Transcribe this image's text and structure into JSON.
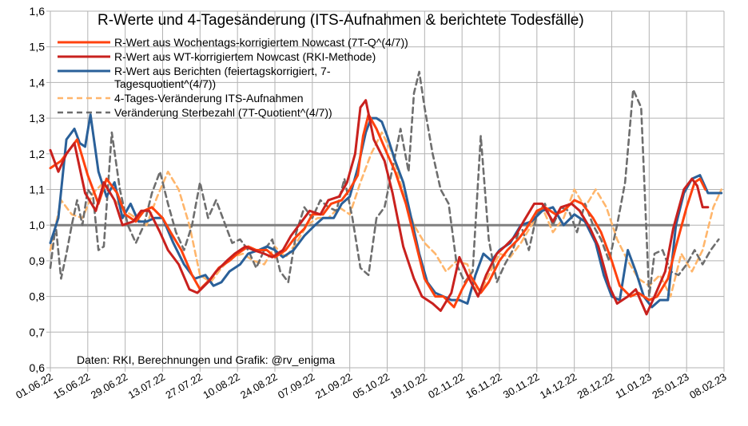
{
  "chart_data": {
    "type": "line",
    "title": "R-Werte und 4-Tagesänderung (ITS-Aufnahmen & berichtete Todesfälle)",
    "credit": "Daten: RKI, Berechnungen und Grafik: @rv_enigma",
    "xlabel": "",
    "ylabel": "",
    "ylim": [
      0.6,
      1.6
    ],
    "y_ticks": [
      "0,6",
      "0,7",
      "0,8",
      "0,9",
      "1,0",
      "1,1",
      "1,2",
      "1,3",
      "1,4",
      "1,5",
      "1,6"
    ],
    "x_ticks": [
      "01.06.22",
      "15.06.22",
      "29.06.22",
      "13.07.22",
      "27.07.22",
      "10.08.22",
      "24.08.22",
      "07.09.22",
      "21.09.22",
      "05.10.22",
      "19.10.22",
      "02.11.22",
      "16.11.22",
      "30.11.22",
      "14.12.22",
      "28.12.22",
      "11.01.23",
      "25.01.23",
      "08.02.23"
    ],
    "x_tick_day": [
      0,
      14,
      28,
      42,
      56,
      70,
      84,
      98,
      112,
      126,
      140,
      154,
      168,
      182,
      196,
      210,
      224,
      238,
      252
    ],
    "x_range_days": [
      0,
      252
    ],
    "grid": true,
    "legend_position": "top-left",
    "reference_line": {
      "value": 1.0,
      "color": "#808080"
    },
    "series": [
      {
        "name": "R-Wert aus Wochentags-korrigiertem Nowcast (7T-Q^(4/7))",
        "legend_lines": [
          "R-Wert aus Wochentags-korrigiertem Nowcast (7T-Q^(4/7))"
        ],
        "color": "#ff420e",
        "dash": "solid",
        "days": [
          0,
          4,
          8,
          10,
          14,
          18,
          21,
          25,
          28,
          32,
          35,
          38,
          42,
          45,
          49,
          53,
          56,
          60,
          63,
          67,
          70,
          74,
          77,
          81,
          84,
          88,
          91,
          95,
          98,
          102,
          105,
          109,
          112,
          115,
          117,
          119,
          122,
          126,
          129,
          133,
          137,
          140,
          144,
          147,
          151,
          154,
          157,
          161,
          164,
          168,
          171,
          175,
          178,
          182,
          185,
          189,
          192,
          196,
          199,
          203,
          206,
          210,
          213,
          217,
          220,
          224,
          227,
          231,
          234,
          238,
          241,
          243,
          245
        ],
        "values": [
          1.16,
          1.18,
          1.22,
          1.24,
          1.14,
          1.06,
          1.13,
          1.09,
          1.03,
          1.01,
          1.04,
          1.05,
          1.02,
          0.98,
          0.93,
          0.86,
          0.82,
          0.85,
          0.88,
          0.9,
          0.92,
          0.94,
          0.93,
          0.93,
          0.91,
          0.93,
          0.96,
          0.99,
          1.03,
          1.03,
          1.06,
          1.07,
          1.1,
          1.14,
          1.25,
          1.31,
          1.27,
          1.2,
          1.15,
          1.06,
          0.94,
          0.85,
          0.8,
          0.8,
          0.77,
          0.82,
          0.86,
          0.81,
          0.84,
          0.9,
          0.93,
          0.96,
          0.99,
          1.04,
          1.05,
          1.03,
          1.04,
          1.07,
          1.06,
          1.02,
          0.98,
          0.9,
          0.83,
          0.8,
          0.81,
          0.79,
          0.8,
          0.85,
          0.94,
          1.05,
          1.12,
          1.13,
          1.1
        ]
      },
      {
        "name": "R-Wert aus WT-korrigiertem Nowcast (RKI-Methode)",
        "legend_lines": [
          "R-Wert aus WT-korrigiertem Nowcast (RKI-Methode)"
        ],
        "color": "#c9211e",
        "dash": "solid",
        "days": [
          0,
          3,
          6,
          9,
          13,
          17,
          20,
          24,
          27,
          31,
          34,
          37,
          41,
          44,
          48,
          52,
          55,
          59,
          62,
          66,
          69,
          73,
          76,
          80,
          83,
          87,
          90,
          94,
          97,
          101,
          104,
          108,
          111,
          114,
          116,
          118,
          121,
          125,
          128,
          132,
          136,
          139,
          143,
          146,
          150,
          153,
          156,
          160,
          163,
          167,
          170,
          174,
          177,
          181,
          184,
          188,
          191,
          195,
          198,
          202,
          205,
          209,
          212,
          216,
          219,
          223,
          226,
          230,
          233,
          237,
          240,
          242,
          244,
          246
        ],
        "values": [
          1.21,
          1.15,
          1.2,
          1.23,
          1.09,
          1.04,
          1.12,
          1.07,
          1.0,
          1.01,
          1.04,
          1.04,
          0.98,
          0.93,
          0.89,
          0.82,
          0.81,
          0.84,
          0.87,
          0.9,
          0.92,
          0.94,
          0.93,
          0.92,
          0.91,
          0.93,
          0.97,
          1.01,
          1.04,
          1.03,
          1.07,
          1.08,
          1.12,
          1.2,
          1.33,
          1.35,
          1.24,
          1.18,
          1.09,
          0.94,
          0.85,
          0.8,
          0.78,
          0.76,
          0.81,
          0.91,
          0.86,
          0.8,
          0.86,
          0.92,
          0.94,
          0.97,
          1.01,
          1.06,
          1.06,
          1.01,
          1.05,
          1.06,
          1.04,
          0.99,
          0.94,
          0.83,
          0.78,
          0.8,
          0.82,
          0.75,
          0.8,
          0.87,
          0.99,
          1.1,
          1.13,
          1.11,
          1.05,
          1.05
        ]
      },
      {
        "name": "R-Wert aus Berichten (feiertagskorrigiert, 7-Tagesquotient^(4/7))",
        "legend_lines": [
          "R-Wert aus Berichten (feiertagskorrigiert, 7-",
          "Tagesquotient^(4/7))"
        ],
        "color": "#2a6099",
        "dash": "solid",
        "days": [
          0,
          3,
          6,
          9,
          11,
          13,
          15,
          18,
          21,
          24,
          27,
          30,
          33,
          36,
          39,
          42,
          46,
          50,
          54,
          58,
          61,
          64,
          67,
          71,
          74,
          78,
          81,
          84,
          87,
          91,
          95,
          99,
          102,
          106,
          109,
          112,
          115,
          118,
          120,
          122,
          124,
          126,
          129,
          132,
          135,
          138,
          141,
          144,
          147,
          150,
          153,
          156,
          159,
          162,
          165,
          168,
          172,
          176,
          180,
          184,
          188,
          192,
          196,
          200,
          204,
          207,
          210,
          213,
          216,
          219,
          222,
          225,
          228,
          231,
          234,
          237,
          240,
          243,
          246,
          249,
          251
        ],
        "values": [
          0.95,
          1.02,
          1.24,
          1.27,
          1.23,
          1.22,
          1.31,
          1.15,
          1.08,
          1.12,
          1.02,
          1.06,
          1.01,
          1.01,
          1.02,
          1.02,
          0.95,
          0.89,
          0.85,
          0.86,
          0.83,
          0.84,
          0.87,
          0.89,
          0.92,
          0.93,
          0.94,
          0.93,
          0.91,
          0.93,
          0.97,
          1.0,
          1.02,
          1.02,
          1.06,
          1.08,
          1.16,
          1.26,
          1.3,
          1.3,
          1.29,
          1.25,
          1.18,
          1.12,
          1.02,
          0.92,
          0.84,
          0.81,
          0.8,
          0.79,
          0.79,
          0.78,
          0.86,
          0.92,
          0.9,
          0.93,
          0.95,
          1.0,
          1.01,
          1.04,
          1.05,
          1.0,
          1.03,
          1.01,
          0.95,
          0.86,
          0.8,
          0.79,
          0.93,
          0.87,
          0.8,
          0.77,
          0.79,
          0.79,
          1.0,
          1.09,
          1.13,
          1.14,
          1.09,
          1.09,
          1.09
        ]
      },
      {
        "name": "4-Tages-Veränderung ITS-Aufnahmen",
        "legend_lines": [
          "4-Tages-Veränderung ITS-Aufnahmen"
        ],
        "color": "#ffb66c",
        "dash": "7,5",
        "days": [
          0,
          4,
          8,
          12,
          16,
          20,
          24,
          28,
          32,
          36,
          40,
          44,
          48,
          52,
          56,
          60,
          64,
          68,
          72,
          76,
          80,
          84,
          88,
          92,
          96,
          100,
          104,
          108,
          112,
          116,
          120,
          124,
          128,
          132,
          136,
          140,
          144,
          148,
          152,
          156,
          160,
          164,
          168,
          172,
          176,
          180,
          184,
          188,
          192,
          196,
          200,
          204,
          208,
          212,
          216,
          220,
          224,
          228,
          232,
          236,
          240,
          244,
          248,
          251
        ],
        "values": [
          0.93,
          1.07,
          1.03,
          1.02,
          1.09,
          1.12,
          1.07,
          1.04,
          1.02,
          1.0,
          1.08,
          1.15,
          1.1,
          1.0,
          0.86,
          0.84,
          0.88,
          0.91,
          0.92,
          0.9,
          0.89,
          0.94,
          0.91,
          0.95,
          1.0,
          1.02,
          1.02,
          1.05,
          1.03,
          1.12,
          1.2,
          1.26,
          1.2,
          1.09,
          1.0,
          0.95,
          0.92,
          0.87,
          0.9,
          0.89,
          0.8,
          0.86,
          0.92,
          0.91,
          0.95,
          1.0,
          1.05,
          0.98,
          1.02,
          1.1,
          1.05,
          1.1,
          1.05,
          0.96,
          0.9,
          0.85,
          0.83,
          0.86,
          0.8,
          0.92,
          0.87,
          0.93,
          1.05,
          1.1
        ]
      },
      {
        "name": "Veränderung Sterbezahl (7T-Quotient^(4/7))",
        "legend_lines": [
          "Veränderung Sterbezahl (7T-Quotient^(4/7))"
        ],
        "color": "#6e6e6e",
        "dash": "7,5",
        "days": [
          0,
          2,
          4,
          6,
          8,
          10,
          12,
          14,
          16,
          18,
          20,
          23,
          26,
          29,
          32,
          35,
          38,
          41,
          44,
          47,
          50,
          53,
          56,
          59,
          62,
          65,
          68,
          71,
          74,
          77,
          80,
          83,
          86,
          89,
          92,
          95,
          98,
          101,
          104,
          107,
          110,
          113,
          116,
          119,
          122,
          125,
          128,
          131,
          134,
          136,
          138,
          140,
          143,
          146,
          149,
          152,
          155,
          158,
          161,
          164,
          167,
          170,
          173,
          176,
          179,
          182,
          185,
          188,
          191,
          194,
          197,
          200,
          203,
          206,
          209,
          212,
          215,
          218,
          221,
          224,
          226,
          229,
          232,
          235,
          238,
          241,
          244,
          247,
          250
        ],
        "values": [
          0.88,
          1.0,
          0.85,
          0.92,
          1.0,
          1.07,
          1.0,
          1.1,
          1.08,
          0.93,
          0.94,
          1.26,
          1.1,
          1.0,
          0.95,
          1.0,
          1.09,
          1.15,
          1.06,
          0.98,
          0.93,
          1.0,
          1.12,
          1.02,
          1.07,
          1.01,
          0.95,
          0.96,
          0.93,
          0.88,
          0.93,
          0.96,
          0.87,
          0.84,
          0.98,
          1.05,
          1.02,
          1.07,
          1.05,
          1.04,
          1.13,
          1.02,
          0.88,
          0.86,
          1.02,
          1.05,
          1.16,
          1.27,
          1.15,
          1.37,
          1.43,
          1.33,
          1.2,
          1.1,
          1.06,
          0.89,
          0.84,
          0.87,
          1.25,
          0.96,
          0.84,
          0.89,
          0.93,
          1.0,
          0.93,
          1.03,
          1.06,
          1.0,
          1.05,
          1.04,
          0.98,
          1.06,
          1.0,
          0.96,
          0.9,
          1.0,
          1.12,
          1.38,
          1.33,
          0.8,
          0.92,
          0.93,
          0.87,
          0.86,
          0.89,
          0.93,
          0.89,
          0.93,
          0.96
        ]
      }
    ]
  }
}
